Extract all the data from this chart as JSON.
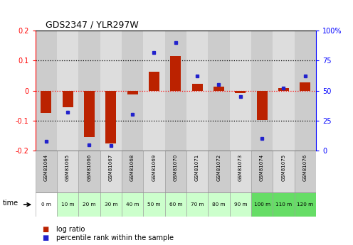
{
  "title": "GDS2347 / YLR297W",
  "samples": [
    "GSM81064",
    "GSM81065",
    "GSM81066",
    "GSM81067",
    "GSM81068",
    "GSM81069",
    "GSM81070",
    "GSM81071",
    "GSM81072",
    "GSM81073",
    "GSM81074",
    "GSM81075",
    "GSM81076"
  ],
  "time_labels": [
    "0 m",
    "10 m",
    "20 m",
    "30 m",
    "40 m",
    "50 m",
    "60 m",
    "70 m",
    "80 m",
    "90 m",
    "100 m",
    "110 m",
    "120 m"
  ],
  "log_ratio": [
    -0.075,
    -0.055,
    -0.155,
    -0.175,
    -0.012,
    0.062,
    0.115,
    0.022,
    0.014,
    -0.008,
    -0.098,
    0.008,
    0.028
  ],
  "percentile": [
    8,
    32,
    5,
    4,
    30,
    82,
    90,
    62,
    55,
    45,
    10,
    52,
    62
  ],
  "bar_color": "#bb2200",
  "dot_color": "#2222cc",
  "ylim_left": [
    -0.2,
    0.2
  ],
  "ylim_right": [
    0,
    100
  ],
  "yticks_left": [
    -0.2,
    -0.1,
    0.0,
    0.1,
    0.2
  ],
  "yticks_right": [
    0,
    25,
    50,
    75,
    100
  ],
  "ytick_labels_right": [
    "0",
    "25",
    "50",
    "75",
    "100%"
  ],
  "sample_colors": [
    "#cccccc",
    "#dddddd",
    "#cccccc",
    "#dddddd",
    "#cccccc",
    "#dddddd",
    "#cccccc",
    "#dddddd",
    "#cccccc",
    "#dddddd",
    "#cccccc",
    "#dddddd",
    "#cccccc"
  ],
  "time_colors": [
    "#ffffff",
    "#ccffcc",
    "#ccffcc",
    "#ccffcc",
    "#ccffcc",
    "#ccffcc",
    "#ccffcc",
    "#ccffcc",
    "#ccffcc",
    "#ccffcc",
    "#66dd66",
    "#66dd66",
    "#66dd66"
  ],
  "legend_log_ratio": "log ratio",
  "legend_percentile": "percentile rank within the sample",
  "bar_width": 0.5
}
